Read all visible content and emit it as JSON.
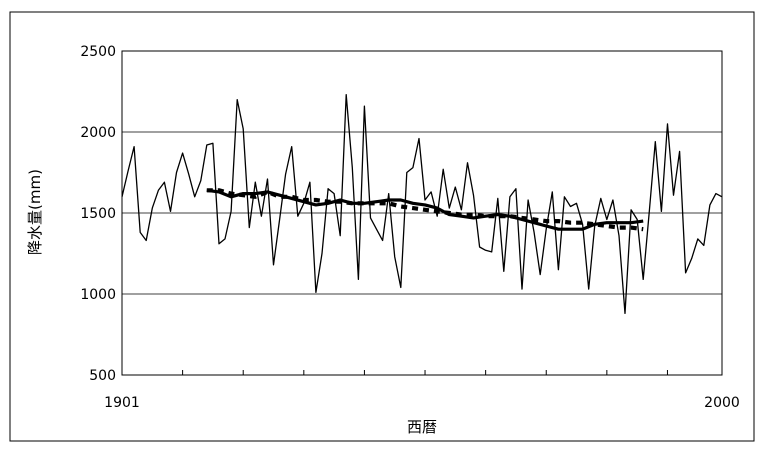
{
  "chart_data": {
    "type": "line",
    "title": "",
    "xlabel": "西暦",
    "ylabel": "降水量(mm)",
    "x_tick_labels": [
      "1901",
      "2000"
    ],
    "y_ticks": [
      500,
      1000,
      1500,
      2000,
      2500
    ],
    "y_tick_labels": [
      "500",
      "1000",
      "1500",
      "2000",
      "2500"
    ],
    "xlim": [
      1901,
      2000
    ],
    "ylim": [
      500,
      2500
    ],
    "grid": "horizontal",
    "colors": {
      "line": "#000000",
      "grid": "#000000",
      "background": "#ffffff"
    },
    "x": [
      1901,
      1902,
      1903,
      1904,
      1905,
      1906,
      1907,
      1908,
      1909,
      1910,
      1911,
      1912,
      1913,
      1914,
      1915,
      1916,
      1917,
      1918,
      1919,
      1920,
      1921,
      1922,
      1923,
      1924,
      1925,
      1926,
      1927,
      1928,
      1929,
      1930,
      1931,
      1932,
      1933,
      1934,
      1935,
      1936,
      1937,
      1938,
      1939,
      1940,
      1941,
      1942,
      1943,
      1944,
      1945,
      1946,
      1947,
      1948,
      1949,
      1950,
      1951,
      1952,
      1953,
      1954,
      1955,
      1956,
      1957,
      1958,
      1959,
      1960,
      1961,
      1962,
      1963,
      1964,
      1965,
      1966,
      1967,
      1968,
      1969,
      1970,
      1971,
      1972,
      1973,
      1974,
      1975,
      1976,
      1977,
      1978,
      1979,
      1980,
      1981,
      1982,
      1983,
      1984,
      1985,
      1986,
      1987,
      1988,
      1989,
      1990,
      1991,
      1992,
      1993,
      1994,
      1995,
      1996,
      1997,
      1998,
      1999,
      2000
    ],
    "series": [
      {
        "style": "thin",
        "values": [
          1600,
          1760,
          1910,
          1380,
          1330,
          1530,
          1640,
          1690,
          1510,
          1750,
          1870,
          1740,
          1600,
          1700,
          1920,
          1930,
          1310,
          1340,
          1510,
          2200,
          2020,
          1410,
          1690,
          1480,
          1710,
          1180,
          1460,
          1740,
          1910,
          1480,
          1560,
          1690,
          1010,
          1250,
          1650,
          1620,
          1360,
          2230,
          1780,
          1090,
          2160,
          1470,
          1400,
          1330,
          1620,
          1230,
          1040,
          1750,
          1780,
          1960,
          1580,
          1630,
          1480,
          1770,
          1530,
          1660,
          1520,
          1810,
          1610,
          1290,
          1270,
          1260,
          1590,
          1140,
          1600,
          1650,
          1030,
          1580,
          1380,
          1120,
          1400,
          1630,
          1150,
          1600,
          1540,
          1560,
          1430,
          1030,
          1420,
          1590,
          1460,
          1580,
          1360,
          880,
          1520,
          1460,
          1090,
          1510,
          1940,
          1510,
          2050,
          1610,
          1880,
          1130,
          1220,
          1340,
          1300,
          1550,
          1620,
          1600
        ]
      },
      {
        "style": "thick",
        "x": [
          1915,
          1917,
          1919,
          1921,
          1923,
          1925,
          1927,
          1929,
          1931,
          1933,
          1935,
          1937,
          1939,
          1941,
          1943,
          1945,
          1947,
          1949,
          1951,
          1953,
          1955,
          1957,
          1959,
          1961,
          1963,
          1965,
          1967,
          1969,
          1971,
          1973,
          1975,
          1977,
          1979,
          1981,
          1983,
          1985,
          1987
        ],
        "values": [
          1640,
          1630,
          1600,
          1620,
          1620,
          1630,
          1610,
          1590,
          1570,
          1550,
          1560,
          1580,
          1560,
          1560,
          1570,
          1580,
          1580,
          1560,
          1550,
          1530,
          1490,
          1480,
          1470,
          1480,
          1490,
          1480,
          1460,
          1440,
          1420,
          1400,
          1400,
          1400,
          1430,
          1440,
          1440,
          1440,
          1450
        ]
      },
      {
        "style": "dashed",
        "x": [
          1915,
          1917,
          1919,
          1921,
          1923,
          1925,
          1927,
          1929,
          1931,
          1933,
          1935,
          1937,
          1939,
          1941,
          1943,
          1945,
          1947,
          1949,
          1951,
          1953,
          1955,
          1957,
          1959,
          1961,
          1963,
          1965,
          1967,
          1969,
          1971,
          1973,
          1975,
          1977,
          1979,
          1981,
          1983,
          1985,
          1987
        ],
        "values": [
          1640,
          1640,
          1620,
          1610,
          1600,
          1630,
          1600,
          1600,
          1580,
          1580,
          1570,
          1570,
          1560,
          1560,
          1560,
          1560,
          1540,
          1530,
          1520,
          1510,
          1500,
          1490,
          1490,
          1480,
          1480,
          1480,
          1470,
          1460,
          1450,
          1450,
          1440,
          1440,
          1430,
          1420,
          1410,
          1410,
          1400
        ]
      }
    ]
  }
}
